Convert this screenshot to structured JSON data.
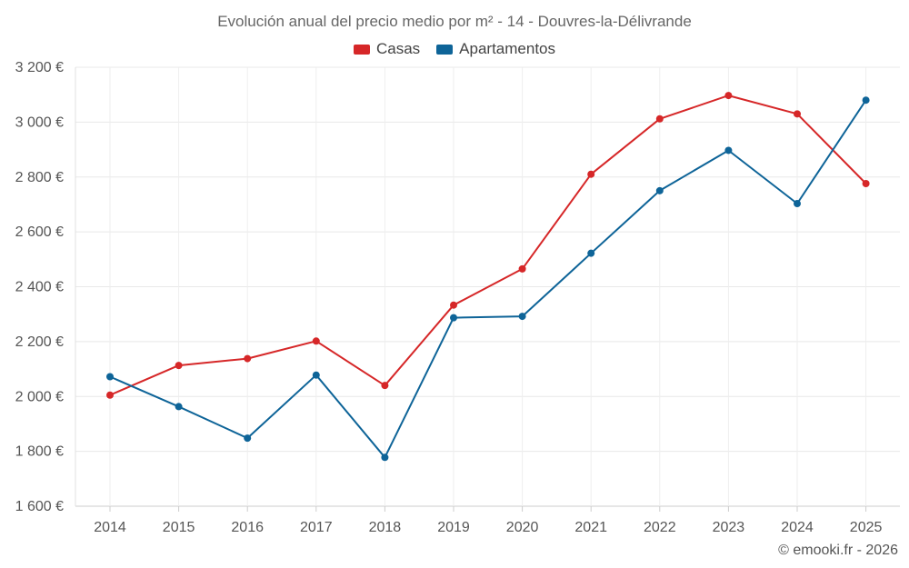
{
  "chart_data": {
    "type": "line",
    "title": "Evolución anual del precio medio por m² - 14 - Douvres-la-Délivrande",
    "categories": [
      "2014",
      "2015",
      "2016",
      "2017",
      "2018",
      "2019",
      "2020",
      "2021",
      "2022",
      "2023",
      "2024",
      "2025"
    ],
    "series": [
      {
        "name": "Casas",
        "color": "#d62728",
        "values": [
          2005,
          2113,
          2138,
          2202,
          2040,
          2333,
          2465,
          2810,
          3012,
          3097,
          3030,
          2776
        ]
      },
      {
        "name": "Apartamentos",
        "color": "#0e6498",
        "values": [
          2072,
          1963,
          1848,
          2078,
          1778,
          2287,
          2292,
          2522,
          2750,
          2897,
          2703,
          3080
        ]
      }
    ],
    "ylim": [
      1600,
      3200
    ],
    "yticks": [
      1600,
      1800,
      2000,
      2200,
      2400,
      2600,
      2800,
      3000,
      3200
    ],
    "ytick_labels": [
      "1 600 €",
      "1 800 €",
      "2 000 €",
      "2 200 €",
      "2 400 €",
      "2 600 €",
      "2 800 €",
      "3 000 €",
      "3 200 €"
    ],
    "xlabel": "",
    "ylabel": "",
    "grid": true,
    "legend_position": "top-center"
  },
  "credit": "© emooki.fr - 2026"
}
